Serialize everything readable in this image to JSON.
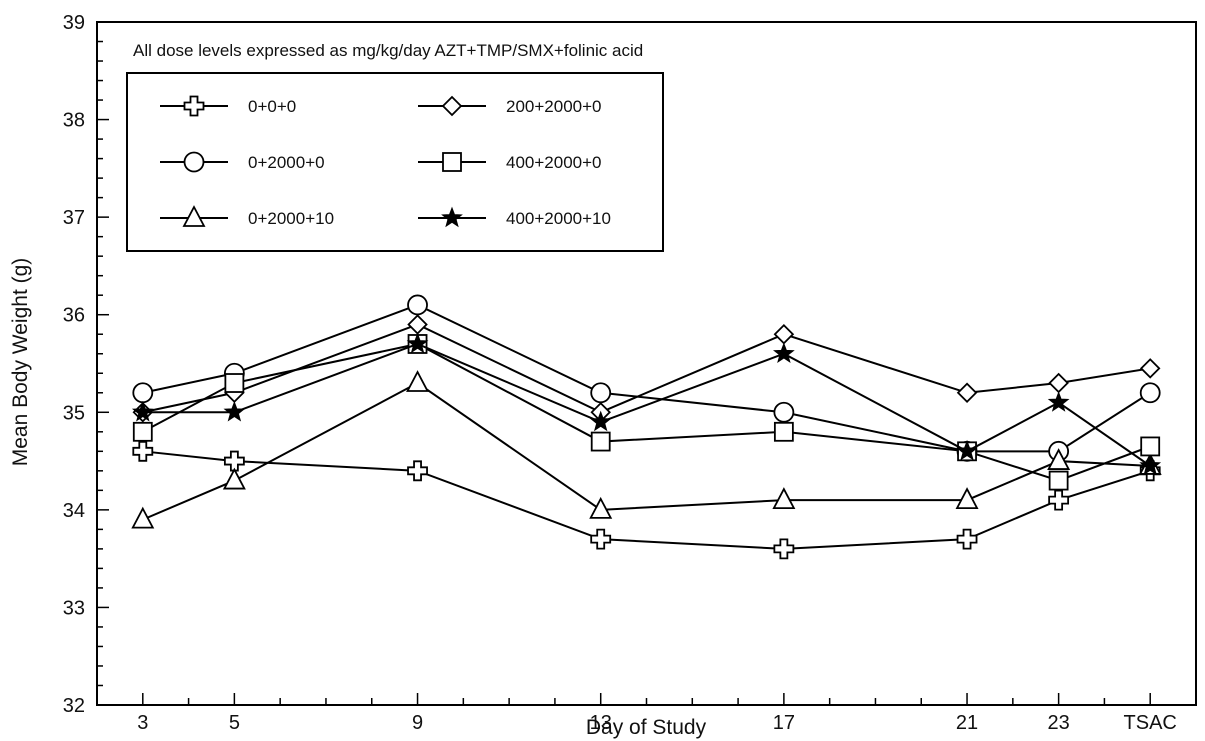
{
  "chart_data": {
    "type": "line",
    "xlabel": "Day of Study",
    "ylabel": "Mean Body Weight (g)",
    "categories": [
      "3",
      "5",
      "9",
      "13",
      "17",
      "21",
      "23",
      "TSAC"
    ],
    "x": [
      3,
      5,
      9,
      13,
      17,
      21,
      23,
      25
    ],
    "ylim": [
      32,
      39
    ],
    "yticks": [
      32,
      33,
      34,
      35,
      36,
      37,
      38,
      39
    ],
    "xlim": [
      2,
      26
    ],
    "note": "All dose levels expressed as mg/kg/day AZT+TMP/SMX+folinic acid",
    "legend_placement": "top-left",
    "grid": false,
    "series": [
      {
        "name": "0+0+0",
        "marker": "cross",
        "values": [
          34.6,
          34.5,
          34.4,
          33.7,
          33.6,
          33.7,
          34.1,
          34.4
        ]
      },
      {
        "name": "0+2000+0",
        "marker": "circle",
        "values": [
          35.2,
          35.4,
          36.1,
          35.2,
          35.0,
          34.6,
          34.6,
          35.2
        ]
      },
      {
        "name": "0+2000+10",
        "marker": "triangle",
        "values": [
          33.9,
          34.3,
          35.3,
          34.0,
          34.1,
          34.1,
          34.5,
          34.45
        ]
      },
      {
        "name": "200+2000+0",
        "marker": "diamond",
        "values": [
          35.0,
          35.2,
          35.9,
          35.0,
          35.8,
          35.2,
          35.3,
          35.45
        ]
      },
      {
        "name": "400+2000+0",
        "marker": "square",
        "values": [
          34.8,
          35.3,
          35.7,
          34.7,
          34.8,
          34.6,
          34.3,
          34.65
        ]
      },
      {
        "name": "400+2000+10",
        "marker": "star",
        "values": [
          35.0,
          35.0,
          35.7,
          34.9,
          35.6,
          34.6,
          35.1,
          34.45
        ]
      }
    ]
  }
}
